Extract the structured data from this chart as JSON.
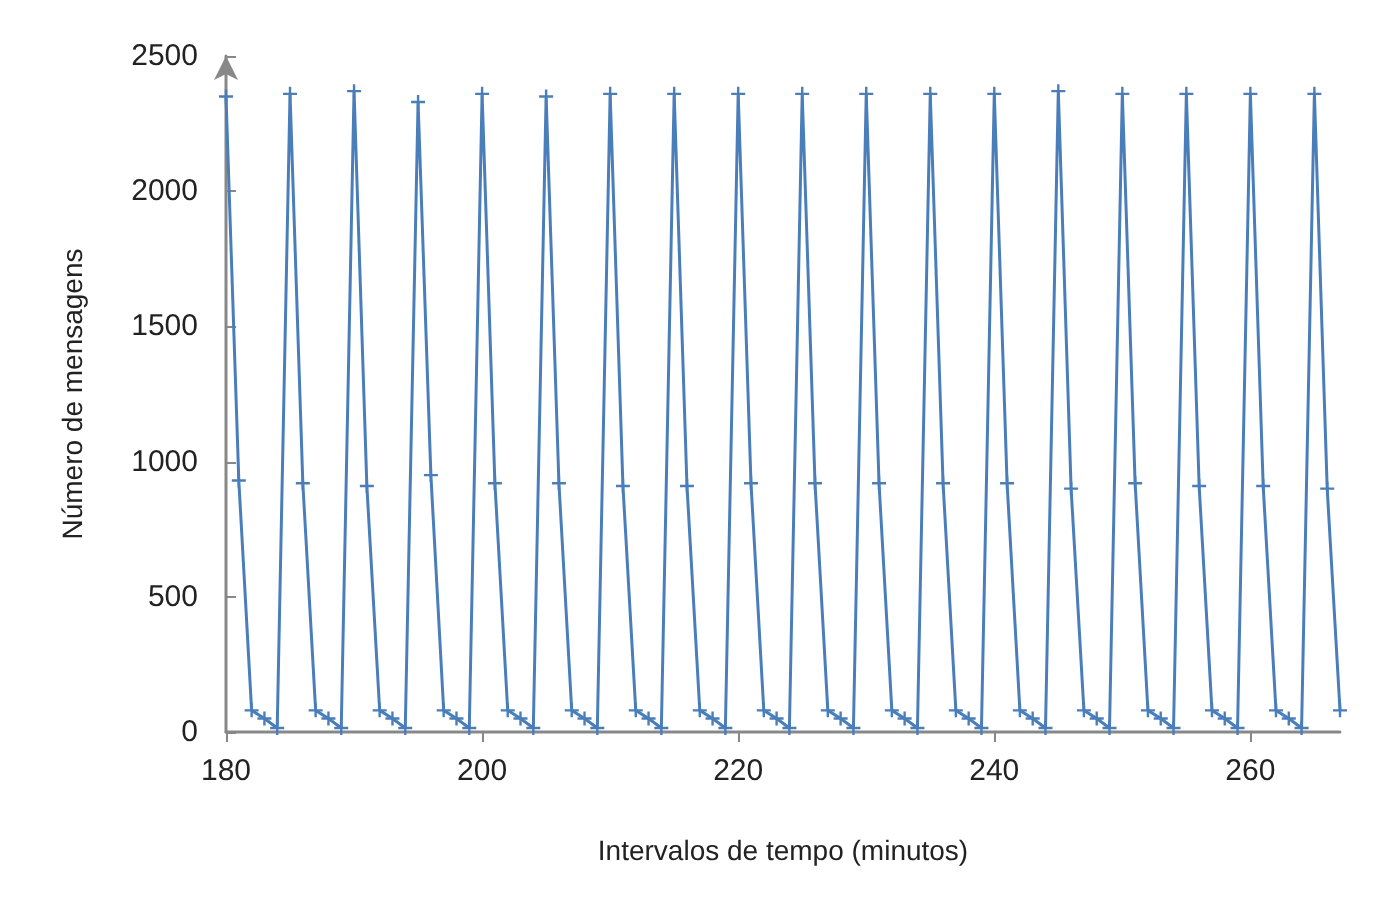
{
  "chart_data": {
    "type": "line",
    "xlabel": "Intervalos de tempo (minutos)",
    "ylabel": "Número de mensagens",
    "x": [
      180,
      181,
      182,
      183,
      184,
      185,
      186,
      187,
      188,
      189,
      190,
      191,
      192,
      193,
      194,
      195,
      196,
      197,
      198,
      199,
      200,
      201,
      202,
      203,
      204,
      205,
      206,
      207,
      208,
      209,
      210,
      211,
      212,
      213,
      214,
      215,
      216,
      217,
      218,
      219,
      220,
      221,
      222,
      223,
      224,
      225,
      226,
      227,
      228,
      229,
      230,
      231,
      232,
      233,
      234,
      235,
      236,
      237,
      238,
      239,
      240,
      241,
      242,
      243,
      244,
      245,
      246,
      247,
      248,
      249,
      250,
      251,
      252,
      253,
      254,
      255,
      256,
      257,
      258,
      259,
      260,
      261,
      262,
      263,
      264,
      265,
      266,
      267
    ],
    "series": [
      {
        "color": "#4a7ebb",
        "values": [
          2350,
          930,
          80,
          50,
          15,
          2360,
          920,
          80,
          50,
          15,
          2370,
          910,
          80,
          50,
          15,
          2330,
          950,
          80,
          50,
          15,
          2360,
          920,
          80,
          50,
          15,
          2350,
          920,
          80,
          50,
          15,
          2360,
          910,
          80,
          50,
          15,
          2360,
          910,
          80,
          50,
          15,
          2360,
          920,
          80,
          50,
          15,
          2360,
          920,
          80,
          50,
          15,
          2360,
          920,
          80,
          50,
          15,
          2360,
          920,
          80,
          50,
          15,
          2360,
          920,
          80,
          50,
          15,
          2370,
          900,
          80,
          50,
          15,
          2360,
          920,
          80,
          50,
          15,
          2360,
          910,
          80,
          50,
          15,
          2360,
          910,
          80,
          50,
          15,
          2360,
          900,
          80
        ]
      }
    ],
    "xlim": [
      180,
      267
    ],
    "xticks": [
      180,
      200,
      220,
      240,
      260
    ],
    "ylim": [
      0,
      2500
    ],
    "yticks": [
      0,
      500,
      1000,
      1500,
      2000,
      2500
    ],
    "grid": false,
    "marker": "cross",
    "line_style": "solid"
  }
}
